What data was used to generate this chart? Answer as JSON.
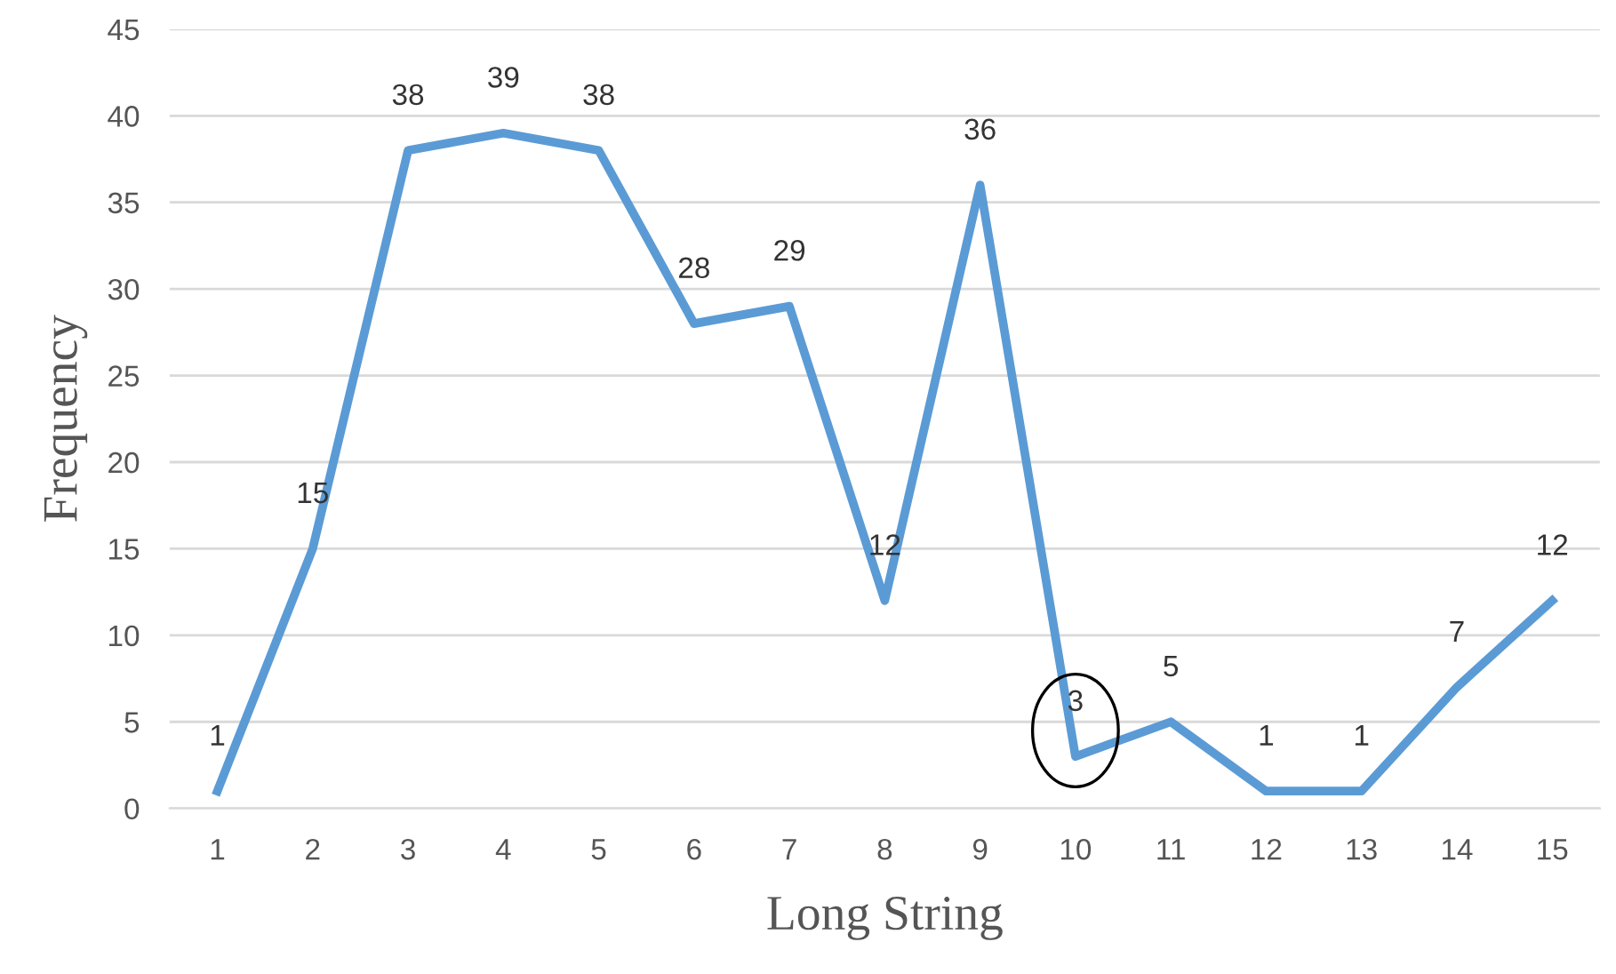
{
  "chart_data": {
    "type": "line",
    "xlabel": "Long String",
    "ylabel": "Frequency",
    "categories": [
      "1",
      "2",
      "3",
      "4",
      "5",
      "6",
      "7",
      "8",
      "9",
      "10",
      "11",
      "12",
      "13",
      "14",
      "15"
    ],
    "series": [
      {
        "color": "#5b9bd5",
        "values": [
          1,
          15,
          38,
          39,
          38,
          28,
          29,
          12,
          36,
          3,
          5,
          1,
          1,
          7,
          12
        ]
      }
    ],
    "ylim": [
      0,
      45
    ],
    "yticks": [
      0,
      5,
      10,
      15,
      20,
      25,
      30,
      35,
      40,
      45
    ],
    "grid": "y",
    "data_labels": true,
    "legend": false,
    "marker": "none",
    "line_style": "solid"
  }
}
